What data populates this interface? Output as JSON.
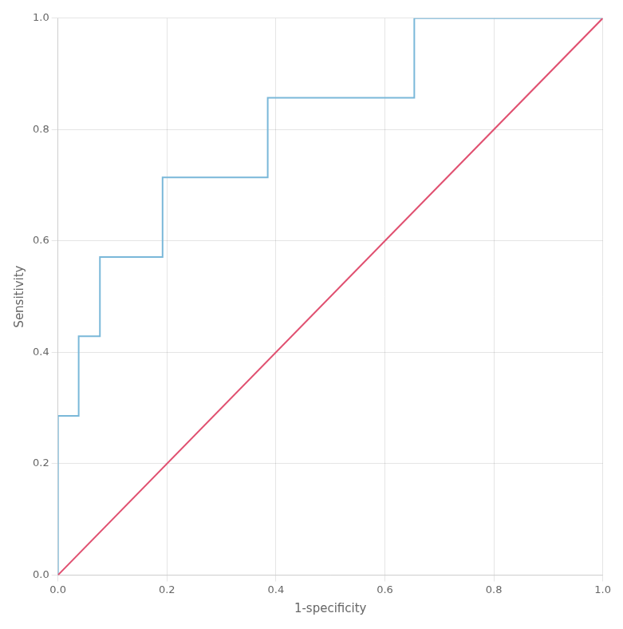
{
  "chart_data": {
    "type": "line",
    "xlabel": "1-specificity",
    "ylabel": "Sensitivity",
    "series": [
      {
        "color": "#e05070",
        "x": [
          0.0,
          1.0
        ],
        "values": [
          0.0,
          1.0
        ]
      },
      {
        "color": "#7ab8d9",
        "x": [
          0.0,
          0.0,
          0.038,
          0.038,
          0.077,
          0.077,
          0.192,
          0.192,
          0.385,
          0.385,
          0.654,
          0.654,
          0.769,
          0.769,
          1.0
        ],
        "values": [
          0.0,
          0.286,
          0.286,
          0.429,
          0.429,
          0.571,
          0.571,
          0.714,
          0.714,
          0.857,
          0.857,
          1.0,
          1.0,
          1.0,
          1.0
        ]
      }
    ],
    "xlim": [
      0,
      1
    ],
    "ylim": [
      0,
      1
    ],
    "xticks": [
      {
        "value": 0,
        "label": "0.0"
      },
      0.2,
      0.4,
      0.6,
      0.8,
      {
        "value": 1,
        "label": "1.0"
      }
    ],
    "yticks": [
      {
        "value": 0,
        "label": "0.0"
      },
      0.2,
      0.4,
      0.6,
      0.8,
      {
        "value": 1,
        "label": "1.0"
      }
    ],
    "grid": true
  }
}
